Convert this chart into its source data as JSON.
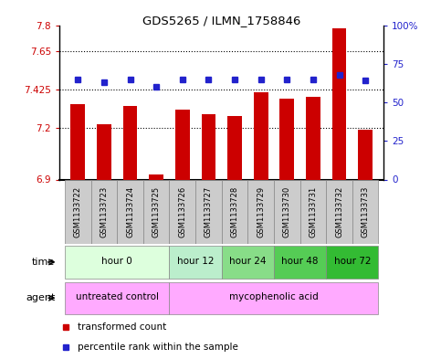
{
  "title": "GDS5265 / ILMN_1758846",
  "samples": [
    "GSM1133722",
    "GSM1133723",
    "GSM1133724",
    "GSM1133725",
    "GSM1133726",
    "GSM1133727",
    "GSM1133728",
    "GSM1133729",
    "GSM1133730",
    "GSM1133731",
    "GSM1133732",
    "GSM1133733"
  ],
  "bar_values": [
    7.34,
    7.22,
    7.33,
    6.93,
    7.31,
    7.28,
    7.27,
    7.41,
    7.37,
    7.38,
    7.78,
    7.19
  ],
  "percentile_values": [
    65,
    63,
    65,
    60,
    65,
    65,
    65,
    65,
    65,
    65,
    68,
    64
  ],
  "bar_bottom": 6.9,
  "ylim_left": [
    6.9,
    7.8
  ],
  "ylim_right": [
    0,
    100
  ],
  "yticks_left": [
    6.9,
    7.2,
    7.425,
    7.65,
    7.8
  ],
  "ytick_labels_left": [
    "6.9",
    "7.2",
    "7.425",
    "7.65",
    "7.8"
  ],
  "yticks_right": [
    0,
    25,
    50,
    75,
    100
  ],
  "ytick_labels_right": [
    "0",
    "25",
    "50",
    "75",
    "100%"
  ],
  "hlines": [
    7.2,
    7.425,
    7.65
  ],
  "bar_color": "#cc0000",
  "dot_color": "#2222cc",
  "time_groups": [
    {
      "label": "hour 0",
      "start": 0,
      "end": 4,
      "color": "#ddffdd"
    },
    {
      "label": "hour 12",
      "start": 4,
      "end": 6,
      "color": "#bbeecc"
    },
    {
      "label": "hour 24",
      "start": 6,
      "end": 8,
      "color": "#88dd88"
    },
    {
      "label": "hour 48",
      "start": 8,
      "end": 10,
      "color": "#55cc55"
    },
    {
      "label": "hour 72",
      "start": 10,
      "end": 12,
      "color": "#33bb33"
    }
  ],
  "agent_groups": [
    {
      "label": "untreated control",
      "start": 0,
      "end": 4,
      "color": "#ffaaff"
    },
    {
      "label": "mycophenolic acid",
      "start": 4,
      "end": 12,
      "color": "#ffaaff"
    }
  ],
  "legend_items": [
    {
      "label": "transformed count",
      "color": "#cc0000",
      "marker": "s"
    },
    {
      "label": "percentile rank within the sample",
      "color": "#2222cc",
      "marker": "s"
    }
  ],
  "bar_width": 0.55,
  "sample_box_color": "#cccccc",
  "sample_box_edgecolor": "#888888"
}
